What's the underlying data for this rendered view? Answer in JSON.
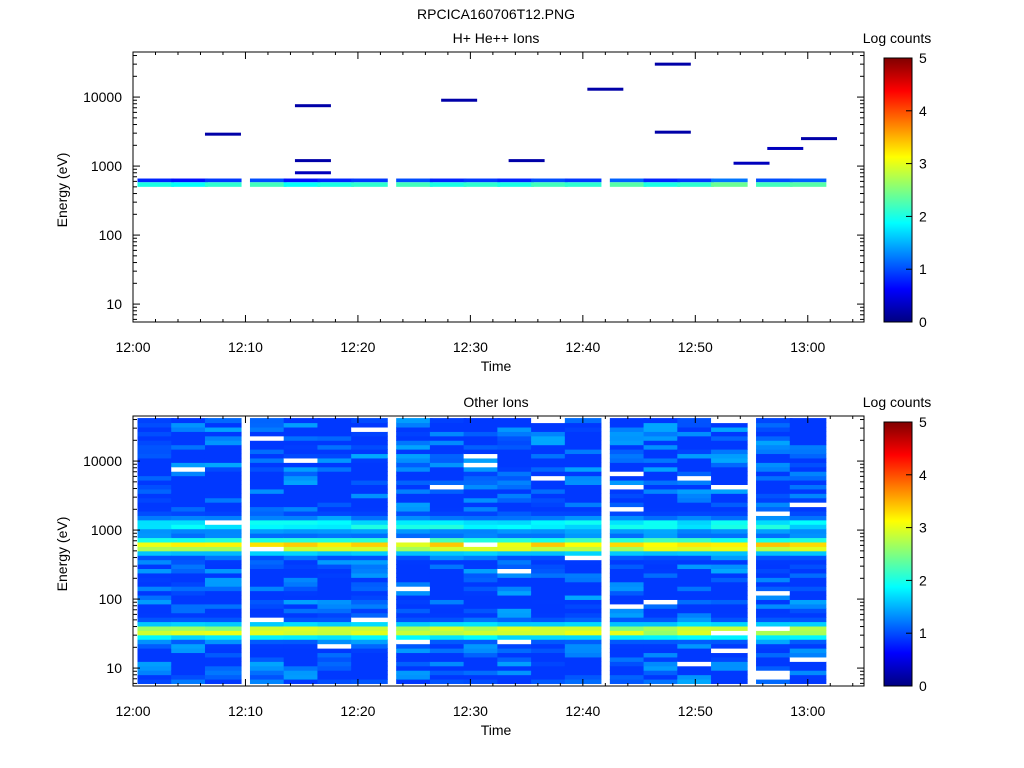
{
  "figure_title": "RPCICA160706T12.PNG",
  "chart_data": [
    {
      "type": "heatmap",
      "title": "H+ He++ Ions",
      "xlabel": "Time",
      "ylabel": "Energy (eV)",
      "yscale": "log",
      "ylim": [
        5.5,
        45000
      ],
      "x_ticks": [
        "12:00",
        "12:10",
        "12:20",
        "12:30",
        "12:40",
        "12:50",
        "13:00"
      ],
      "y_ticks": [
        "10",
        "100",
        "1000",
        "10000"
      ],
      "colorbar": {
        "label": "Log counts",
        "range": [
          0,
          5
        ],
        "ticks": [
          "0",
          "1",
          "2",
          "3",
          "4",
          "5"
        ]
      },
      "time_columns": [
        "12:02",
        "12:05",
        "12:08",
        "12:12",
        "12:15",
        "12:18",
        "12:21",
        "12:25",
        "12:28",
        "12:31",
        "12:34",
        "12:37",
        "12:40",
        "12:44",
        "12:47",
        "12:50",
        "12:53",
        "12:57",
        "13:00"
      ],
      "core_band_eV": [
        500,
        660
      ],
      "core_band_log_counts": [
        2.0,
        1.9,
        2.1,
        2.2,
        1.9,
        2.0,
        2.1,
        2.2,
        2.0,
        2.1,
        2.0,
        2.2,
        2.1,
        2.3,
        2.0,
        2.1,
        2.4,
        2.2,
        2.3
      ],
      "high_energy_counts": [
        {
          "time": "12:08",
          "energy_eV": 2900,
          "log_counts": 0.2
        },
        {
          "time": "12:16",
          "energy_eV": 7500,
          "log_counts": 0.2
        },
        {
          "time": "12:16",
          "energy_eV": 1200,
          "log_counts": 0.2
        },
        {
          "time": "12:16",
          "energy_eV": 800,
          "log_counts": 0.3
        },
        {
          "time": "12:29",
          "energy_eV": 9000,
          "log_counts": 0.2
        },
        {
          "time": "12:35",
          "energy_eV": 1200,
          "log_counts": 0.2
        },
        {
          "time": "12:42",
          "energy_eV": 13000,
          "log_counts": 0.2
        },
        {
          "time": "12:48",
          "energy_eV": 30000,
          "log_counts": 0.2
        },
        {
          "time": "12:48",
          "energy_eV": 3100,
          "log_counts": 0.2
        },
        {
          "time": "12:55",
          "energy_eV": 1100,
          "log_counts": 0.3
        },
        {
          "time": "12:58",
          "energy_eV": 1800,
          "log_counts": 0.3
        },
        {
          "time": "13:01",
          "energy_eV": 2500,
          "log_counts": 0.2
        }
      ]
    },
    {
      "type": "heatmap",
      "title": "Other Ions",
      "xlabel": "Time",
      "ylabel": "Energy (eV)",
      "yscale": "log",
      "ylim": [
        5.5,
        45000
      ],
      "x_ticks": [
        "12:00",
        "12:10",
        "12:20",
        "12:30",
        "12:40",
        "12:50",
        "13:00"
      ],
      "y_ticks": [
        "10",
        "100",
        "1000",
        "10000"
      ],
      "colorbar": {
        "label": "Log counts",
        "range": [
          0,
          5
        ],
        "ticks": [
          "0",
          "1",
          "2",
          "3",
          "4",
          "5"
        ]
      },
      "time_columns": [
        "12:02",
        "12:05",
        "12:08",
        "12:12",
        "12:15",
        "12:18",
        "12:21",
        "12:25",
        "12:28",
        "12:31",
        "12:34",
        "12:37",
        "12:40",
        "12:44",
        "12:47",
        "12:50",
        "12:53",
        "12:57",
        "13:00"
      ],
      "energy_bands": [
        {
          "energy_eV": 1200,
          "log_counts": 1.9
        },
        {
          "energy_eV": 600,
          "log_counts": 3.3
        },
        {
          "energy_eV": 35,
          "log_counts": 3.0
        },
        {
          "energy_eV": 12,
          "log_counts": 0.6
        }
      ],
      "background_log_counts": 0.9
    }
  ]
}
